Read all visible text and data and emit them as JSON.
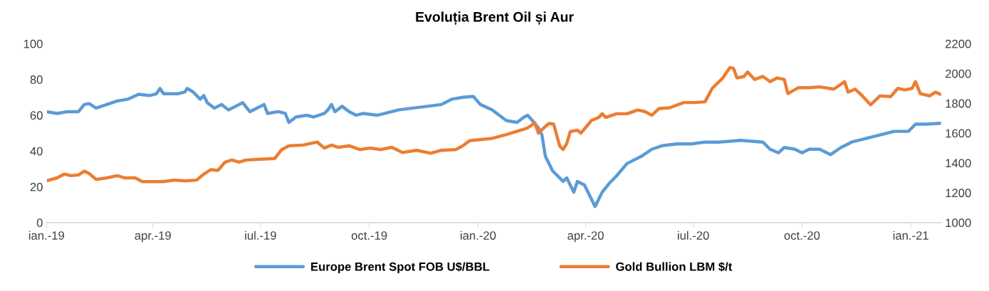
{
  "chart_data": {
    "type": "line",
    "title": "Evoluția Brent Oil și Aur",
    "xlim": [
      "2019-01-01",
      "2021-01-27"
    ],
    "xticks": [
      {
        "value": "2019-01-01",
        "label": "ian.-19"
      },
      {
        "value": "2019-04-01",
        "label": "apr.-19"
      },
      {
        "value": "2019-07-01",
        "label": "iul.-19"
      },
      {
        "value": "2019-10-01",
        "label": "oct.-19"
      },
      {
        "value": "2020-01-01",
        "label": "ian.-20"
      },
      {
        "value": "2020-04-01",
        "label": "apr.-20"
      },
      {
        "value": "2020-07-01",
        "label": "iul.-20"
      },
      {
        "value": "2020-10-01",
        "label": "oct.-20"
      },
      {
        "value": "2021-01-01",
        "label": "ian.-21"
      }
    ],
    "ylim": [
      0,
      100
    ],
    "yticks": [
      0,
      20,
      40,
      60,
      80,
      100
    ],
    "y2lim": [
      1000,
      2200
    ],
    "y2ticks": [
      1000,
      1200,
      1400,
      1600,
      1800,
      2000,
      2200
    ],
    "grid": false,
    "legend": "bottom",
    "marker": "none",
    "line_style": "solid",
    "series": [
      {
        "name": "Europe Brent Spot FOB U$/BBL",
        "color": "#5b9bd5",
        "axis": "y",
        "x": [
          "2019-01-01",
          "2019-01-10",
          "2019-01-19",
          "2019-01-28",
          "2019-02-02",
          "2019-02-06",
          "2019-02-12",
          "2019-02-21",
          "2019-03-02",
          "2019-03-11",
          "2019-03-20",
          "2019-03-29",
          "2019-04-04",
          "2019-04-07",
          "2019-04-10",
          "2019-04-22",
          "2019-04-28",
          "2019-04-30",
          "2019-05-05",
          "2019-05-11",
          "2019-05-14",
          "2019-05-17",
          "2019-05-23",
          "2019-05-29",
          "2019-06-04",
          "2019-06-10",
          "2019-06-16",
          "2019-06-22",
          "2019-06-28",
          "2019-07-04",
          "2019-07-07",
          "2019-07-16",
          "2019-07-22",
          "2019-07-25",
          "2019-07-31",
          "2019-08-09",
          "2019-08-15",
          "2019-08-24",
          "2019-08-27",
          "2019-08-30",
          "2019-09-02",
          "2019-09-08",
          "2019-09-14",
          "2019-09-20",
          "2019-09-26",
          "2019-10-08",
          "2019-10-20",
          "2019-10-26",
          "2019-11-07",
          "2019-11-19",
          "2019-12-01",
          "2019-12-10",
          "2019-12-19",
          "2019-12-28",
          "2020-01-03",
          "2020-01-13",
          "2020-01-19",
          "2020-01-25",
          "2020-02-03",
          "2020-02-09",
          "2020-02-12",
          "2020-02-16",
          "2020-02-21",
          "2020-02-24",
          "2020-02-27",
          "2020-03-04",
          "2020-03-13",
          "2020-03-16",
          "2020-03-22",
          "2020-03-25",
          "2020-03-31",
          "2020-04-09",
          "2020-04-15",
          "2020-04-21",
          "2020-04-27",
          "2020-05-06",
          "2020-05-18",
          "2020-05-27",
          "2020-06-05",
          "2020-06-17",
          "2020-06-29",
          "2020-07-11",
          "2020-07-23",
          "2020-08-10",
          "2020-08-29",
          "2020-09-04",
          "2020-09-11",
          "2020-09-16",
          "2020-09-25",
          "2020-10-01",
          "2020-10-07",
          "2020-10-16",
          "2020-10-25",
          "2020-11-03",
          "2020-11-12",
          "2020-11-24",
          "2020-12-06",
          "2020-12-18",
          "2020-12-30",
          "2021-01-05",
          "2021-01-14",
          "2021-01-26"
        ],
        "values": [
          62,
          61,
          62,
          62,
          66,
          66.5,
          64,
          66,
          68,
          69,
          71.7,
          71,
          72,
          75,
          72,
          72,
          73,
          75,
          73,
          69,
          71,
          67,
          64,
          66,
          63,
          65,
          67,
          62,
          64,
          66,
          61,
          62,
          61,
          56,
          59,
          60,
          59,
          61,
          63,
          66,
          62,
          65,
          62,
          60,
          61,
          60,
          62,
          63,
          64,
          65,
          66,
          69,
          70,
          70.5,
          66,
          63,
          60,
          57,
          56,
          59,
          60,
          57,
          53,
          49,
          37,
          29,
          23,
          25,
          17,
          23,
          21,
          9,
          17,
          22,
          26,
          33,
          37,
          41,
          43,
          44,
          44,
          45,
          45,
          46,
          45,
          41,
          39,
          42,
          41,
          39,
          41,
          41,
          38,
          42,
          45,
          47,
          49,
          51,
          51,
          55,
          55,
          55.5
        ]
      },
      {
        "name": "Gold Bullion LBM $/t",
        "color": "#ed7d31",
        "axis": "y2",
        "x": [
          "2019-01-01",
          "2019-01-10",
          "2019-01-16",
          "2019-01-22",
          "2019-01-28",
          "2019-02-02",
          "2019-02-06",
          "2019-02-12",
          "2019-02-21",
          "2019-03-02",
          "2019-03-08",
          "2019-03-17",
          "2019-03-23",
          "2019-04-01",
          "2019-04-10",
          "2019-04-19",
          "2019-04-28",
          "2019-05-08",
          "2019-05-14",
          "2019-05-20",
          "2019-05-26",
          "2019-06-01",
          "2019-06-07",
          "2019-06-13",
          "2019-06-19",
          "2019-07-01",
          "2019-07-13",
          "2019-07-19",
          "2019-07-25",
          "2019-08-06",
          "2019-08-18",
          "2019-08-24",
          "2019-08-30",
          "2019-09-05",
          "2019-09-14",
          "2019-09-23",
          "2019-10-02",
          "2019-10-11",
          "2019-10-20",
          "2019-10-29",
          "2019-11-10",
          "2019-11-22",
          "2019-12-01",
          "2019-12-13",
          "2019-12-19",
          "2019-12-25",
          "2020-01-01",
          "2020-01-13",
          "2020-01-25",
          "2020-02-12",
          "2020-02-18",
          "2020-02-21",
          "2020-02-27",
          "2020-03-01",
          "2020-03-05",
          "2020-03-10",
          "2020-03-13",
          "2020-03-16",
          "2020-03-19",
          "2020-03-25",
          "2020-03-28",
          "2020-04-06",
          "2020-04-12",
          "2020-04-15",
          "2020-04-18",
          "2020-04-27",
          "2020-05-06",
          "2020-05-15",
          "2020-05-21",
          "2020-05-27",
          "2020-06-02",
          "2020-06-11",
          "2020-06-23",
          "2020-07-02",
          "2020-07-11",
          "2020-07-17",
          "2020-07-26",
          "2020-08-01",
          "2020-08-04",
          "2020-08-07",
          "2020-08-13",
          "2020-08-16",
          "2020-08-22",
          "2020-08-29",
          "2020-09-04",
          "2020-09-10",
          "2020-09-16",
          "2020-09-19",
          "2020-09-28",
          "2020-10-07",
          "2020-10-16",
          "2020-10-28",
          "2020-11-06",
          "2020-11-09",
          "2020-11-15",
          "2020-11-21",
          "2020-11-28",
          "2020-12-06",
          "2020-12-15",
          "2020-12-21",
          "2020-12-27",
          "2021-01-02",
          "2021-01-05",
          "2021-01-09",
          "2021-01-17",
          "2021-01-22",
          "2021-01-26"
        ],
        "values": [
          1280,
          1300,
          1325,
          1315,
          1320,
          1345,
          1330,
          1290,
          1300,
          1315,
          1300,
          1300,
          1275,
          1275,
          1275,
          1285,
          1280,
          1285,
          1325,
          1355,
          1350,
          1405,
          1420,
          1405,
          1420,
          1425,
          1430,
          1490,
          1515,
          1520,
          1540,
          1500,
          1520,
          1505,
          1515,
          1490,
          1500,
          1490,
          1505,
          1470,
          1485,
          1465,
          1485,
          1490,
          1515,
          1550,
          1555,
          1565,
          1590,
          1635,
          1670,
          1600,
          1645,
          1665,
          1660,
          1515,
          1490,
          1530,
          1610,
          1620,
          1600,
          1685,
          1705,
          1730,
          1705,
          1730,
          1730,
          1755,
          1745,
          1720,
          1765,
          1770,
          1805,
          1805,
          1810,
          1900,
          1970,
          2040,
          2035,
          1970,
          1980,
          2010,
          1960,
          1980,
          1945,
          1970,
          1960,
          1865,
          1905,
          1905,
          1910,
          1895,
          1945,
          1875,
          1895,
          1850,
          1790,
          1850,
          1845,
          1900,
          1890,
          1900,
          1945,
          1865,
          1850,
          1875,
          1860
        ]
      }
    ]
  }
}
